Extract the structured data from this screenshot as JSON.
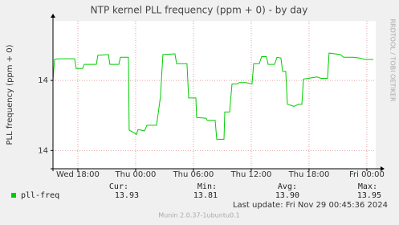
{
  "chart_data": {
    "type": "line",
    "title": "NTP kernel PLL frequency (ppm + 0) - by day",
    "y_label": "PLL frequency (ppm + 0)",
    "side_text": "RRDTOOL / TOBI OETIKER",
    "xlim": [
      -2.58,
      30.92
    ],
    "xticks": [
      {
        "value": 0,
        "label": "Wed 18:00"
      },
      {
        "value": 6,
        "label": "Thu 00:00"
      },
      {
        "value": 12,
        "label": "Thu 06:00"
      },
      {
        "value": 18,
        "label": "Thu 12:00"
      },
      {
        "value": 24,
        "label": "Thu 18:00"
      },
      {
        "value": 30,
        "label": "Fri 00:00"
      }
    ],
    "ylim": [
      13.774,
      13.985
    ],
    "yticks": [
      {
        "value": 13.8,
        "label": "14"
      },
      {
        "value": 13.9,
        "label": "14"
      }
    ],
    "grid": true,
    "x": [
      -2.58,
      -2.42,
      -2.08,
      -0.33,
      -0.17,
      0.5,
      0.67,
      1.92,
      2.08,
      3.17,
      3.33,
      4.25,
      4.42,
      5.25,
      5.33,
      5.75,
      6.08,
      6.25,
      6.92,
      7.17,
      8.17,
      8.58,
      8.83,
      10.08,
      10.25,
      11.33,
      11.5,
      12.25,
      12.33,
      13.33,
      13.42,
      14.25,
      14.42,
      15.17,
      15.25,
      15.75,
      16,
      16.58,
      16.75,
      17.42,
      18.08,
      18.25,
      18.83,
      19.08,
      19.58,
      19.75,
      20.42,
      20.67,
      21.08,
      21.25,
      21.58,
      21.75,
      22.25,
      22.42,
      22.92,
      23.25,
      23.42,
      24.83,
      25.25,
      25.92,
      26.08,
      27.25,
      27.58,
      28.58,
      29.25,
      29.83,
      30.67
    ],
    "series": [
      {
        "name": "pll-freq",
        "color": "#00cc00",
        "values": [
          13.9,
          13.93,
          13.931,
          13.931,
          13.917,
          13.917,
          13.923,
          13.923,
          13.936,
          13.937,
          13.923,
          13.923,
          13.933,
          13.933,
          13.829,
          13.826,
          13.823,
          13.83,
          13.828,
          13.836,
          13.836,
          13.877,
          13.937,
          13.938,
          13.924,
          13.924,
          13.875,
          13.875,
          13.847,
          13.846,
          13.843,
          13.843,
          13.816,
          13.816,
          13.855,
          13.855,
          13.895,
          13.895,
          13.897,
          13.897,
          13.895,
          13.924,
          13.924,
          13.934,
          13.934,
          13.923,
          13.923,
          13.933,
          13.932,
          13.913,
          13.913,
          13.866,
          13.864,
          13.863,
          13.866,
          13.866,
          13.902,
          13.905,
          13.903,
          13.903,
          13.939,
          13.937,
          13.933,
          13.933,
          13.932,
          13.93,
          13.93
        ]
      }
    ],
    "legend_stats": [
      {
        "label": "Cur:",
        "value": "13.93"
      },
      {
        "label": "Min:",
        "value": "13.81"
      },
      {
        "label": "Avg:",
        "value": "13.90"
      },
      {
        "label": "Max:",
        "value": "13.95"
      }
    ],
    "last_update": "Last update: Fri Nov 29 00:45:36 2024",
    "footer": "Munin 2.0.37-1ubuntu0.1"
  }
}
